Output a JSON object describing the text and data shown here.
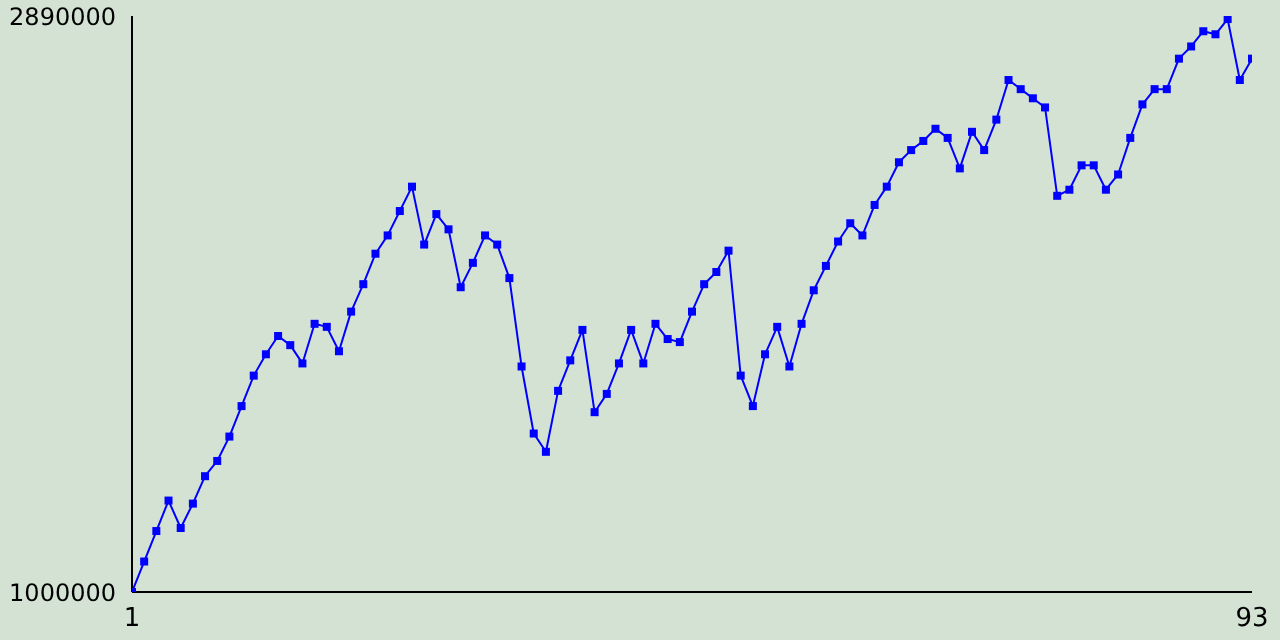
{
  "chart_data": {
    "type": "line",
    "marker": "square",
    "xlim": [
      1,
      93
    ],
    "xticks": [
      1,
      93
    ],
    "ylim": [
      1000000,
      2890000
    ],
    "yticks": [
      1000000,
      2890000
    ],
    "x": [
      1,
      2,
      3,
      4,
      5,
      6,
      7,
      8,
      9,
      10,
      11,
      12,
      13,
      14,
      15,
      16,
      17,
      18,
      19,
      20,
      21,
      22,
      23,
      24,
      25,
      26,
      27,
      28,
      29,
      30,
      31,
      32,
      33,
      34,
      35,
      36,
      37,
      38,
      39,
      40,
      41,
      42,
      43,
      44,
      45,
      46,
      47,
      48,
      49,
      50,
      51,
      52,
      53,
      54,
      55,
      56,
      57,
      58,
      59,
      60,
      61,
      62,
      63,
      64,
      65,
      66,
      67,
      68,
      69,
      70,
      71,
      72,
      73,
      74,
      75,
      76,
      77,
      78,
      79,
      80,
      81,
      82,
      83,
      84,
      85,
      86,
      87,
      88,
      89,
      90,
      91,
      92,
      93
    ],
    "series": [
      {
        "color": "#0000ff",
        "values": [
          1000000,
          1100000,
          1200000,
          1300000,
          1210000,
          1290000,
          1380000,
          1430000,
          1510000,
          1610000,
          1710000,
          1780000,
          1840000,
          1810000,
          1750000,
          1880000,
          1870000,
          1790000,
          1920000,
          2010000,
          2110000,
          2170000,
          2250000,
          2330000,
          2140000,
          2240000,
          2190000,
          2000000,
          2080000,
          2170000,
          2140000,
          2030000,
          1740000,
          1520000,
          1460000,
          1660000,
          1760000,
          1860000,
          1590000,
          1650000,
          1750000,
          1860000,
          1750000,
          1880000,
          1830000,
          1820000,
          1920000,
          2010000,
          2050000,
          2120000,
          1710000,
          1610000,
          1780000,
          1870000,
          1740000,
          1880000,
          1990000,
          2070000,
          2150000,
          2210000,
          2170000,
          2270000,
          2330000,
          2410000,
          2450000,
          2480000,
          2520000,
          2490000,
          2390000,
          2510000,
          2450000,
          2550000,
          2680000,
          2650000,
          2620000,
          2590000,
          2300000,
          2320000,
          2400000,
          2400000,
          2320000,
          2370000,
          2490000,
          2600000,
          2650000,
          2650000,
          2750000,
          2790000,
          2840000,
          2830000,
          2880000,
          2680000,
          2750000
        ]
      }
    ]
  }
}
